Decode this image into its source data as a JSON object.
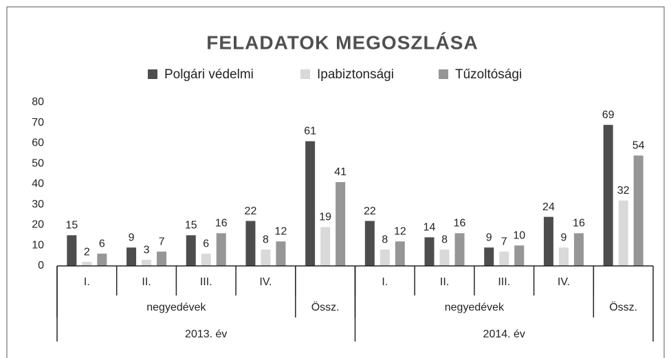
{
  "chart_data": {
    "type": "bar",
    "title": "FELADATOK  MEGOSZLÁSA",
    "categories": [
      "I.",
      "II.",
      "III.",
      "IV.",
      null,
      "I.",
      "II.",
      "III.",
      "IV.",
      null
    ],
    "category_groups": [
      {
        "label": "negyedévek",
        "span": 4
      },
      {
        "label": "Össz.",
        "span": 1
      },
      {
        "label": "negyedévek",
        "span": 4
      },
      {
        "label": "Össz.",
        "span": 1
      }
    ],
    "years": [
      {
        "label": "2013. év",
        "span": 5
      },
      {
        "label": "2014. év",
        "span": 5
      }
    ],
    "series": [
      {
        "name": "Polgári védelmi",
        "color": "#4d4d4d",
        "values": [
          15,
          9,
          15,
          22,
          61,
          22,
          14,
          9,
          24,
          69
        ]
      },
      {
        "name": "Ipabiztonsági",
        "color": "#d9d9d9",
        "values": [
          2,
          3,
          6,
          8,
          19,
          8,
          8,
          7,
          9,
          32
        ]
      },
      {
        "name": "Tűzoltósági",
        "color": "#969696",
        "values": [
          6,
          7,
          16,
          12,
          41,
          12,
          16,
          10,
          16,
          54
        ]
      }
    ],
    "ylim": [
      0,
      80
    ],
    "yticks": [
      0,
      10,
      20,
      30,
      40,
      50,
      60,
      70,
      80
    ],
    "grid": false,
    "legend": "top"
  }
}
